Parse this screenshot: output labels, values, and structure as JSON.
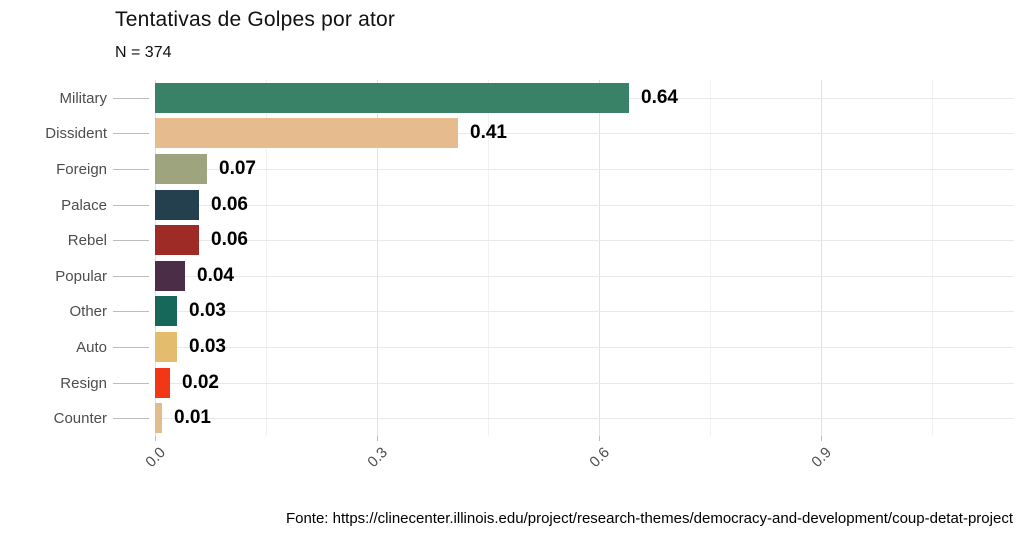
{
  "title": "Tentativas de Golpes por ator",
  "subtitle": "N = 374",
  "caption": "Fonte: https://clinecenter.illinois.edu/project/research-themes/democracy-and-development/coup-detat-project",
  "chart_data": {
    "type": "bar",
    "orientation": "horizontal",
    "title": "Tentativas de Golpes por ator",
    "subtitle": "N = 374",
    "caption": "Fonte: https://clinecenter.illinois.edu/project/research-themes/democracy-and-development/coup-detat-project",
    "categories": [
      "Military",
      "Dissident",
      "Foreign",
      "Palace",
      "Rebel",
      "Popular",
      "Other",
      "Auto",
      "Resign",
      "Counter"
    ],
    "values": [
      0.64,
      0.41,
      0.07,
      0.06,
      0.06,
      0.04,
      0.03,
      0.03,
      0.02,
      0.01
    ],
    "value_labels": [
      "0.64",
      "0.41",
      "0.07",
      "0.06",
      "0.06",
      "0.04",
      "0.03",
      "0.03",
      "0.02",
      "0.01"
    ],
    "bar_colors": [
      "#3a8267",
      "#e6bc8e",
      "#9ea57e",
      "#24404f",
      "#9e2b26",
      "#4b2d47",
      "#16685a",
      "#e3bc6e",
      "#f23716",
      "#e2bd8c"
    ],
    "x_ticks": [
      0.0,
      0.3,
      0.6,
      0.9
    ],
    "x_tick_labels": [
      "0.0",
      "0.3",
      "0.6",
      "0.9"
    ],
    "x_minor_ticks": [
      0.15,
      0.45,
      0.75,
      1.05
    ],
    "xlim": [
      0,
      1.16
    ],
    "xlabel": "",
    "ylabel": "",
    "grid": true,
    "legend": false,
    "axis_text_color": "#4d4d4d",
    "value_label_color": "#000000",
    "grid_major_color": "#e2e2e2",
    "grid_minor_color": "#f1f1f1"
  }
}
